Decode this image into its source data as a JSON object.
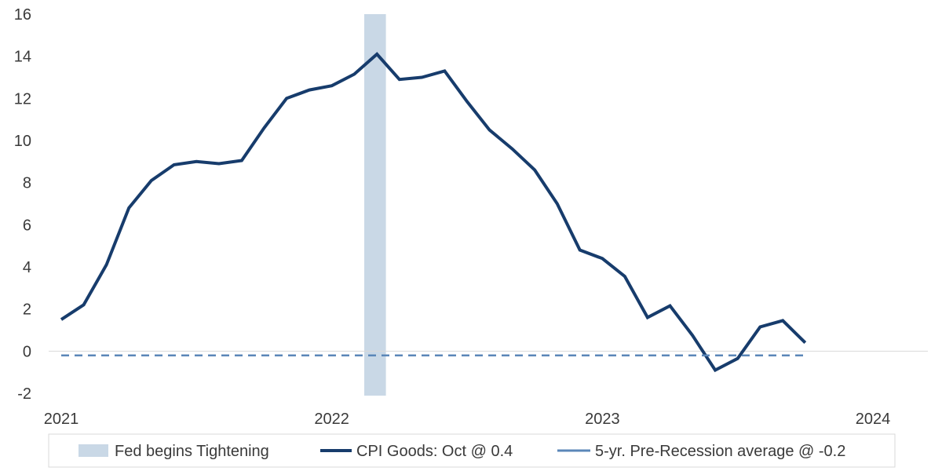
{
  "chart_data": {
    "type": "line",
    "title": "",
    "xlabel": "",
    "ylabel": "",
    "ylim": [
      -2,
      16
    ],
    "yticks": [
      -2,
      0,
      2,
      4,
      6,
      8,
      10,
      12,
      14,
      16
    ],
    "ytick_labels": [
      "-2",
      "0",
      "2",
      "4",
      "6",
      "8",
      "10",
      "12",
      "14",
      "16"
    ],
    "xlim": [
      2021.0,
      2024.25
    ],
    "xticks": [
      2021,
      2022,
      2023,
      2024
    ],
    "xtick_labels": [
      "2021",
      "2022",
      "2023",
      "2024"
    ],
    "grid": false,
    "legend_position": "bottom",
    "shaded_region": {
      "name": "Fed begins Tightening",
      "x_start": 2022.12,
      "x_end": 2022.2,
      "color": "#c9d8e6"
    },
    "series": [
      {
        "name": "CPI Goods: Oct @ 0.4",
        "color": "#173c6c",
        "style": "solid",
        "x": [
          2021.0,
          2021.083,
          2021.167,
          2021.25,
          2021.333,
          2021.417,
          2021.5,
          2021.583,
          2021.667,
          2021.75,
          2021.833,
          2021.917,
          2022.0,
          2022.083,
          2022.167,
          2022.25,
          2022.333,
          2022.417,
          2022.5,
          2022.583,
          2022.667,
          2022.75,
          2022.833,
          2022.917,
          2023.0,
          2023.083,
          2023.167,
          2023.25,
          2023.333,
          2023.417,
          2023.5,
          2023.583,
          2023.667,
          2023.75
        ],
        "values": [
          1.5,
          2.2,
          4.1,
          6.8,
          8.1,
          8.85,
          9.0,
          8.9,
          9.05,
          10.6,
          12.0,
          12.4,
          12.6,
          13.15,
          14.1,
          12.9,
          13.0,
          13.3,
          11.85,
          10.5,
          9.6,
          8.6,
          7.0,
          4.8,
          4.4,
          3.55,
          1.6,
          2.15,
          0.75,
          -0.9,
          -0.35,
          1.15,
          1.45,
          0.4
        ]
      },
      {
        "name": "5-yr. Pre-Recession average @ -0.2",
        "color": "#5b87b8",
        "style": "dashed",
        "x": [
          2021.0,
          2023.75
        ],
        "values": [
          -0.2,
          -0.2
        ]
      }
    ],
    "legend": [
      {
        "label": "Fed begins Tightening",
        "kind": "band",
        "color": "#c9d8e6"
      },
      {
        "label": "CPI Goods: Oct @ 0.4",
        "kind": "line",
        "color": "#173c6c"
      },
      {
        "label": "5-yr. Pre-Recession average @ -0.2",
        "kind": "dashed",
        "color": "#5b87b8"
      }
    ]
  }
}
